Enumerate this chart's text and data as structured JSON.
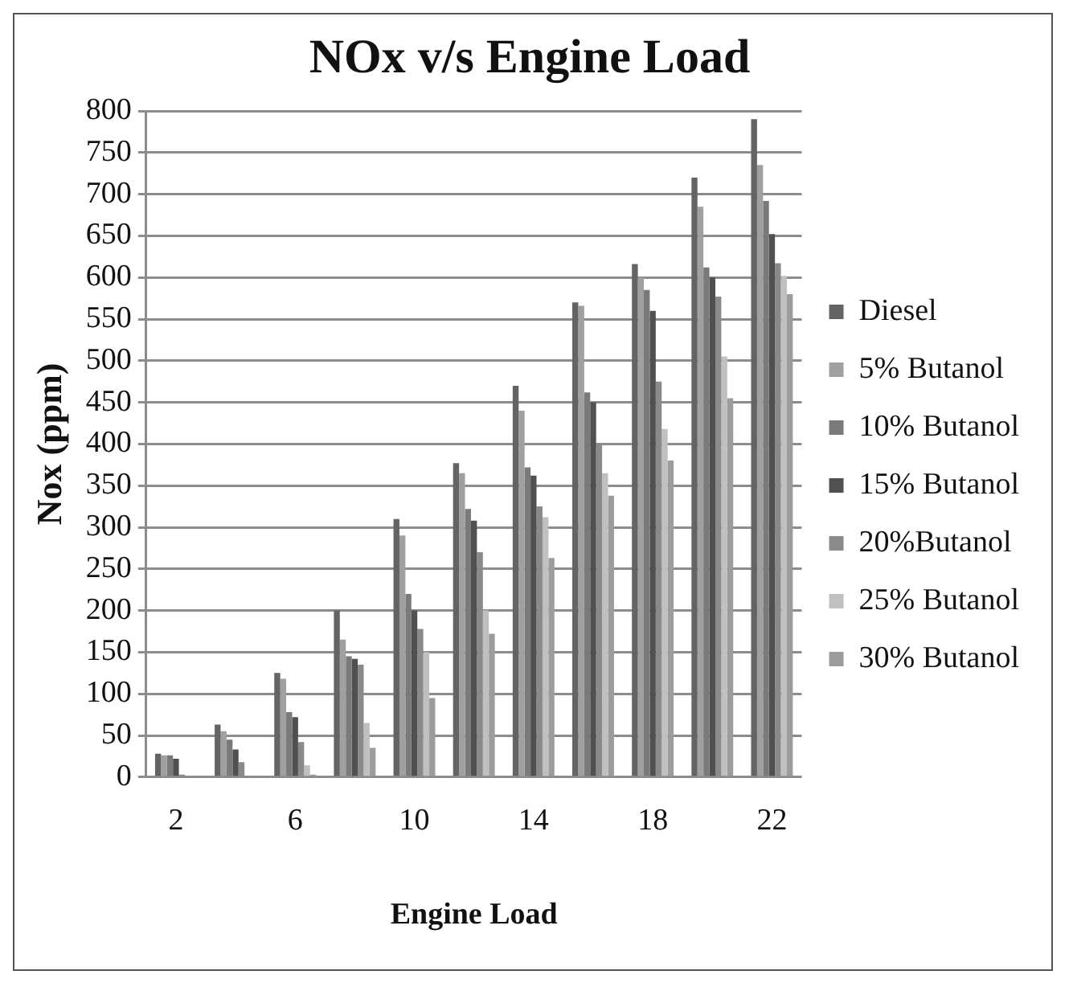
{
  "chart_data": {
    "type": "bar",
    "title": "NOx v/s Engine Load",
    "xlabel": "Engine Load",
    "ylabel": "Nox (ppm)",
    "categories": [
      "2",
      null,
      "6",
      null,
      "10",
      null,
      "14",
      null,
      "18",
      null,
      "22"
    ],
    "series": [
      {
        "name": "Diesel",
        "color": "#646464",
        "values": [
          28,
          63,
          125,
          200,
          310,
          377,
          470,
          570,
          616,
          720,
          790
        ]
      },
      {
        "name": "5% Butanol",
        "color": "#a0a0a0",
        "values": [
          26,
          55,
          118,
          165,
          290,
          365,
          440,
          566,
          600,
          685,
          735
        ]
      },
      {
        "name": "10% Butanol",
        "color": "#7a7a7a",
        "values": [
          26,
          45,
          78,
          145,
          220,
          322,
          372,
          462,
          585,
          612,
          692
        ]
      },
      {
        "name": "15% Butanol",
        "color": "#505050",
        "values": [
          22,
          33,
          72,
          142,
          200,
          308,
          362,
          450,
          560,
          600,
          652
        ]
      },
      {
        "name": "20%Butanol",
        "color": "#8a8a8a",
        "values": [
          3,
          18,
          42,
          135,
          178,
          270,
          325,
          400,
          475,
          577,
          617
        ]
      },
      {
        "name": "25% Butanol",
        "color": "#c0c0c0",
        "values": [
          0,
          0,
          14,
          65,
          150,
          200,
          312,
          365,
          418,
          505,
          602
        ]
      },
      {
        "name": "30% Butanol",
        "color": "#9c9c9c",
        "values": [
          0,
          0,
          3,
          35,
          95,
          172,
          263,
          338,
          380,
          455,
          580
        ]
      }
    ],
    "ylim": [
      0,
      800
    ],
    "yticks": [
      0,
      50,
      100,
      150,
      200,
      250,
      300,
      350,
      400,
      450,
      500,
      550,
      600,
      650,
      700,
      750,
      800
    ],
    "grid": "y",
    "legend": "right"
  }
}
